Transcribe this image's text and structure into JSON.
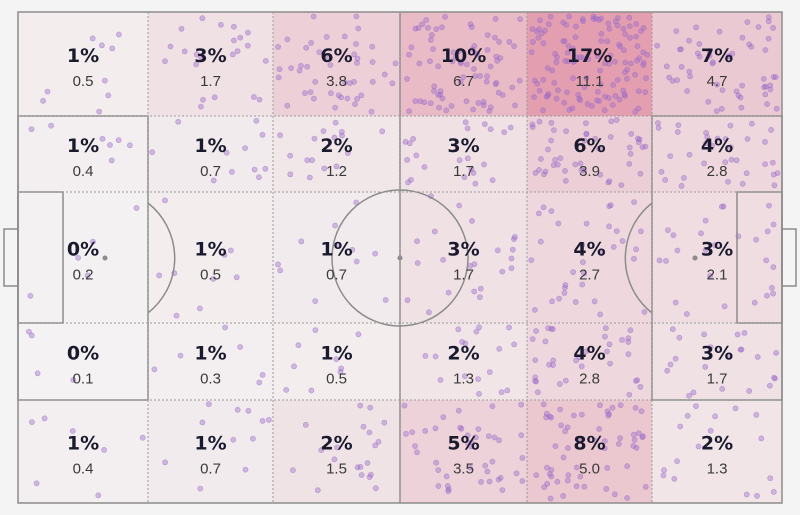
{
  "chart_data": {
    "type": "heatmap",
    "title": "",
    "xlabel": "",
    "ylabel": "",
    "colors": {
      "high": "#d86a86",
      "low": "#f4f4f4",
      "dot": "#9b6cc8",
      "line": "#8c8c8c"
    },
    "grid": {
      "rows": 5,
      "cols": 6
    },
    "cells": [
      [
        {
          "pct": "1%",
          "value": "0.5"
        },
        {
          "pct": "3%",
          "value": "1.7"
        },
        {
          "pct": "6%",
          "value": "3.8"
        },
        {
          "pct": "10%",
          "value": "6.7"
        },
        {
          "pct": "17%",
          "value": "11.1"
        },
        {
          "pct": "7%",
          "value": "4.7"
        }
      ],
      [
        {
          "pct": "1%",
          "value": "0.4"
        },
        {
          "pct": "1%",
          "value": "0.7"
        },
        {
          "pct": "2%",
          "value": "1.2"
        },
        {
          "pct": "3%",
          "value": "1.7"
        },
        {
          "pct": "6%",
          "value": "3.9"
        },
        {
          "pct": "4%",
          "value": "2.8"
        }
      ],
      [
        {
          "pct": "0%",
          "value": "0.2"
        },
        {
          "pct": "1%",
          "value": "0.5"
        },
        {
          "pct": "1%",
          "value": "0.7"
        },
        {
          "pct": "3%",
          "value": "1.7"
        },
        {
          "pct": "4%",
          "value": "2.7"
        },
        {
          "pct": "3%",
          "value": "2.1"
        }
      ],
      [
        {
          "pct": "0%",
          "value": "0.1"
        },
        {
          "pct": "1%",
          "value": "0.3"
        },
        {
          "pct": "1%",
          "value": "0.5"
        },
        {
          "pct": "2%",
          "value": "1.3"
        },
        {
          "pct": "4%",
          "value": "2.8"
        },
        {
          "pct": "3%",
          "value": "1.7"
        }
      ],
      [
        {
          "pct": "1%",
          "value": "0.4"
        },
        {
          "pct": "1%",
          "value": "0.7"
        },
        {
          "pct": "2%",
          "value": "1.5"
        },
        {
          "pct": "5%",
          "value": "3.5"
        },
        {
          "pct": "8%",
          "value": "5.0"
        },
        {
          "pct": "2%",
          "value": "1.3"
        }
      ]
    ]
  }
}
